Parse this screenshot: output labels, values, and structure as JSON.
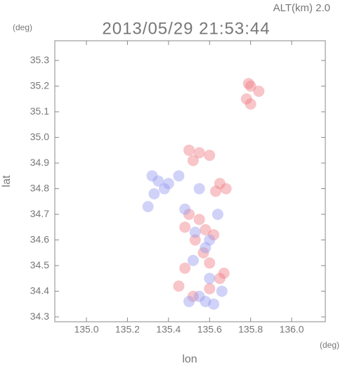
{
  "chart_data": {
    "type": "scatter",
    "title": "2013/05/29 21:53:44",
    "subtitle": "ALT(km) 2.0",
    "x_label": "lon",
    "y_label": "lat",
    "x_unit": "(deg)",
    "y_unit": "(deg)",
    "xlim": [
      134.846,
      136.164
    ],
    "ylim": [
      34.281,
      35.377
    ],
    "xticks": [
      {
        "value": 135.0,
        "label": "135.0"
      },
      135.2,
      135.4,
      135.6,
      135.8,
      {
        "value": 136.0,
        "label": "136.0"
      }
    ],
    "yticks": [
      {
        "value": 34.3,
        "label": "34.3"
      },
      34.4,
      34.5,
      34.6,
      34.7,
      34.8,
      34.9,
      {
        "value": 35.0,
        "label": "35.0"
      },
      35.1,
      35.2,
      35.3
    ],
    "grid": false,
    "series": [
      {
        "color": "#f07f86",
        "x": [
          135.79,
          135.8,
          135.84,
          135.78,
          135.8,
          135.5,
          135.55,
          135.6,
          135.52,
          135.65,
          135.68,
          135.63,
          135.5,
          135.55,
          135.48,
          135.58,
          135.53,
          135.62,
          135.57,
          135.67,
          135.65,
          135.45,
          135.52,
          135.6,
          135.48,
          135.6
        ],
        "values": [
          35.21,
          35.2,
          35.18,
          35.15,
          35.13,
          34.95,
          34.94,
          34.93,
          34.91,
          34.82,
          34.8,
          34.79,
          34.7,
          34.68,
          34.65,
          34.64,
          34.6,
          34.62,
          34.55,
          34.47,
          34.45,
          34.42,
          34.38,
          34.41,
          34.49,
          34.51
        ]
      },
      {
        "color": "#9a9cf0",
        "x": [
          135.35,
          135.32,
          135.4,
          135.45,
          135.38,
          135.55,
          135.33,
          135.3,
          135.48,
          135.53,
          135.58,
          135.6,
          135.55,
          135.58,
          135.62,
          135.5,
          135.52,
          135.64,
          135.6,
          135.66
        ],
        "values": [
          34.83,
          34.85,
          34.82,
          34.85,
          34.8,
          34.8,
          34.78,
          34.73,
          34.72,
          34.63,
          34.57,
          34.45,
          34.38,
          34.36,
          34.35,
          34.36,
          34.52,
          34.7,
          34.6,
          34.4
        ]
      }
    ]
  }
}
